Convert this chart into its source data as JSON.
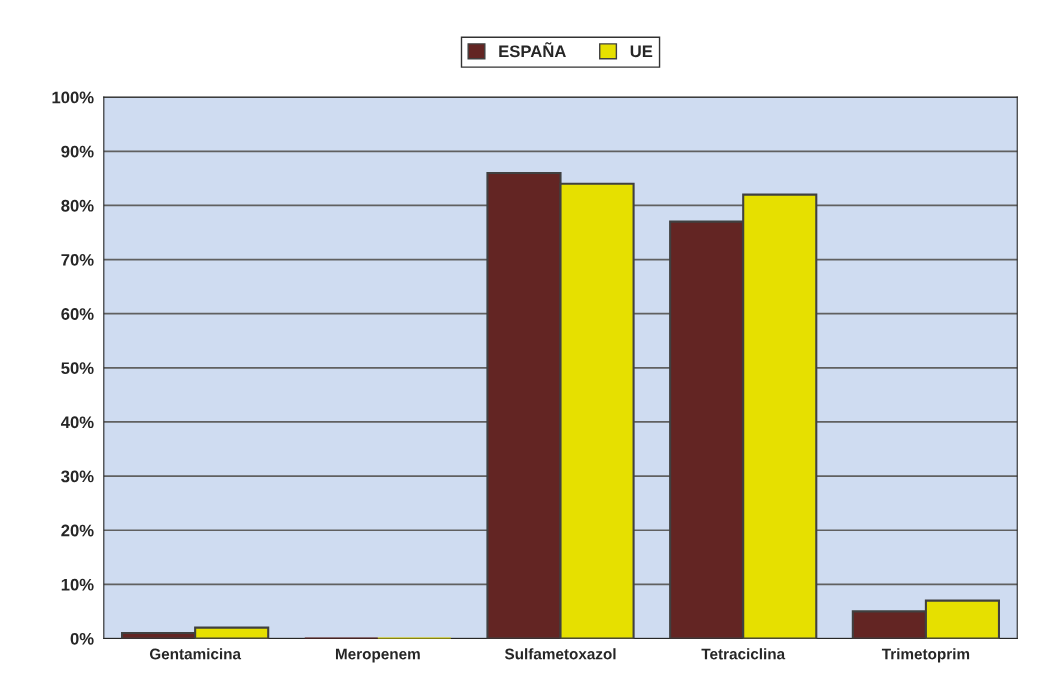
{
  "chart_data": {
    "type": "bar",
    "categories": [
      "Gentamicina",
      "Meropenem",
      "Sulfametoxazol",
      "Tetraciclina",
      "Trimetoprim"
    ],
    "series": [
      {
        "name": "ESPAÑA",
        "color": "#632523",
        "values": [
          1,
          0,
          86,
          77,
          5
        ]
      },
      {
        "name": "UE",
        "color": "#e6e000",
        "values": [
          2,
          0,
          84,
          82,
          7
        ]
      }
    ],
    "ylim": [
      0,
      100
    ],
    "yticks": [
      {
        "value": 0,
        "label": "0%"
      },
      {
        "value": 10,
        "label": "10%"
      },
      {
        "value": 20,
        "label": "20%"
      },
      {
        "value": 30,
        "label": "30%"
      },
      {
        "value": 40,
        "label": "40%"
      },
      {
        "value": 50,
        "label": "50%"
      },
      {
        "value": 60,
        "label": "60%"
      },
      {
        "value": 70,
        "label": "70%"
      },
      {
        "value": 80,
        "label": "80%"
      },
      {
        "value": 90,
        "label": "90%"
      },
      {
        "value": 100,
        "label": "100%"
      }
    ],
    "grid": "y",
    "legend": "top"
  }
}
